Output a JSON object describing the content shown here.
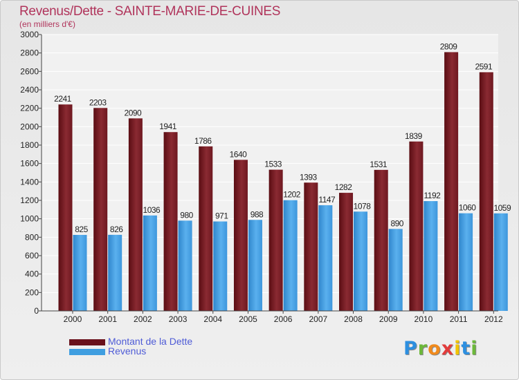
{
  "header": {
    "title": "Revenus/Dette - SAINTE-MARIE-DE-CUINES",
    "subtitle": "(en milliers d'€)"
  },
  "chart_data": {
    "type": "bar",
    "title": "Revenus/Dette - SAINTE-MARIE-DE-CUINES",
    "ylabel": "(en milliers d'€)",
    "xlabel": "",
    "ylim": [
      0,
      3000
    ],
    "yticks": [
      0,
      200,
      400,
      600,
      800,
      1000,
      1200,
      1400,
      1600,
      1800,
      2000,
      2200,
      2400,
      2600,
      2800,
      3000
    ],
    "categories": [
      "2000",
      "2001",
      "2002",
      "2003",
      "2004",
      "2005",
      "2006",
      "2007",
      "2008",
      "2009",
      "2010",
      "2011",
      "2012"
    ],
    "series": [
      {
        "name": "Montant de la Dette",
        "color": "#7a1c24",
        "values": [
          2241,
          2203,
          2090,
          1941,
          1786,
          1640,
          1533,
          1393,
          1282,
          1531,
          1839,
          2809,
          2591
        ]
      },
      {
        "name": "Revenus",
        "color": "#3f9ee0",
        "values": [
          825,
          826,
          1036,
          980,
          971,
          988,
          1202,
          1147,
          1078,
          890,
          1192,
          1060,
          1059
        ]
      }
    ],
    "legend": [
      "Montant de la Dette",
      "Revenus"
    ]
  },
  "legend": {
    "debt_label": "Montant de la Dette",
    "revenue_label": "Revenus"
  },
  "logo": {
    "letters": [
      "P",
      "r",
      "o",
      "x",
      "i",
      "t",
      "i"
    ],
    "colors": [
      "#2d8fe0",
      "#6cb83a",
      "#f08a1c",
      "#e23b3b",
      "#f2c400",
      "#2d8fe0",
      "#6cb83a"
    ]
  }
}
